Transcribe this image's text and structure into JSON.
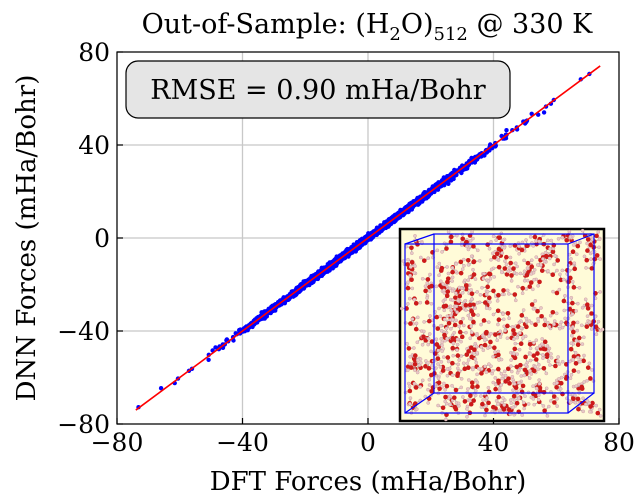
{
  "chart_data": {
    "type": "scatter",
    "title": "Out-of-Sample: (H₂O)₅₁₂ @ 330 K",
    "title_parts": {
      "prefix": "Out-of-Sample: (H",
      "sub1": "2",
      "mid": "O)",
      "sub2": "512",
      "suffix": " @ 330 K"
    },
    "xlabel": "DFT Forces (mHa/Bohr)",
    "ylabel": "DNN Forces (mHa/Bohr)",
    "xlim": [
      -80,
      80
    ],
    "ylim": [
      -80,
      80
    ],
    "xticks": [
      -80,
      -40,
      0,
      40,
      80
    ],
    "yticks": [
      -80,
      -40,
      0,
      40,
      80
    ],
    "xtick_labels": [
      "−80",
      "−40",
      "0",
      "40",
      "80"
    ],
    "ytick_labels": [
      "−80",
      "−40",
      "0",
      "40",
      "80"
    ],
    "grid": true,
    "annotation": "RMSE = 0.90 mHa/Bohr",
    "series": [
      {
        "kind": "scatter",
        "color": "#0000ff",
        "x_range": [
          -74,
          73
        ],
        "description_points": [
          [
            -74,
            -73.5
          ],
          [
            -70,
            -70.8
          ],
          [
            -66,
            -66.2
          ],
          [
            -61,
            -60.4
          ],
          [
            -55,
            -55.6
          ],
          [
            -48,
            -47.5
          ],
          [
            -40,
            -40.6
          ],
          [
            -30,
            -29.3
          ],
          [
            -20,
            -20.7
          ],
          [
            -10,
            -9.4
          ],
          [
            0,
            0.5
          ],
          [
            10,
            9.3
          ],
          [
            20,
            20.8
          ],
          [
            30,
            29.4
          ],
          [
            40,
            40.7
          ],
          [
            48,
            47.4
          ],
          [
            55,
            55.8
          ],
          [
            62,
            61.3
          ],
          [
            68,
            68.6
          ],
          [
            73,
            72.5
          ]
        ]
      },
      {
        "kind": "line",
        "color": "#ff0000",
        "x": [
          -74,
          74
        ],
        "y": [
          -74,
          74
        ]
      }
    ],
    "inset": {
      "content": "water molecule box",
      "background": "#fffbd8",
      "box_color": "#0000ff",
      "atom_colors": [
        "#cc1a1a",
        "#e8c8c8"
      ]
    }
  }
}
